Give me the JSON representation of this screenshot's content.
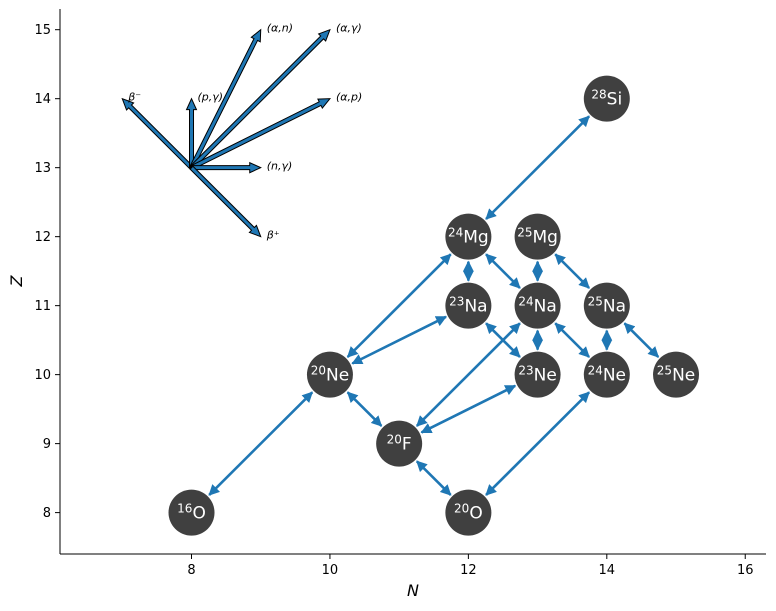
{
  "chart_data": {
    "type": "network",
    "xlabel": "N",
    "ylabel": "Z",
    "xlim": [
      6.1,
      16.3
    ],
    "ylim": [
      7.4,
      15.3
    ],
    "xticks": [
      8,
      10,
      12,
      14,
      16
    ],
    "yticks": [
      8,
      9,
      10,
      11,
      12,
      13,
      14,
      15
    ],
    "node_color": "#404040",
    "edge_color": "#1f77b4",
    "nuclei": [
      {
        "id": "O16",
        "mass": "16",
        "symbol": "O",
        "n": 8,
        "z": 8
      },
      {
        "id": "Ne20",
        "mass": "20",
        "symbol": "Ne",
        "n": 10,
        "z": 10
      },
      {
        "id": "F20",
        "mass": "20",
        "symbol": "F",
        "n": 11,
        "z": 9
      },
      {
        "id": "O20",
        "mass": "20",
        "symbol": "O",
        "n": 12,
        "z": 8
      },
      {
        "id": "Na23",
        "mass": "23",
        "symbol": "Na",
        "n": 12,
        "z": 11
      },
      {
        "id": "Mg24",
        "mass": "24",
        "symbol": "Mg",
        "n": 12,
        "z": 12
      },
      {
        "id": "Ne23",
        "mass": "23",
        "symbol": "Ne",
        "n": 13,
        "z": 10
      },
      {
        "id": "Na24",
        "mass": "24",
        "symbol": "Na",
        "n": 13,
        "z": 11
      },
      {
        "id": "Mg25",
        "mass": "25",
        "symbol": "Mg",
        "n": 13,
        "z": 12
      },
      {
        "id": "Ne24",
        "mass": "24",
        "symbol": "Ne",
        "n": 14,
        "z": 10
      },
      {
        "id": "Na25",
        "mass": "25",
        "symbol": "Na",
        "n": 14,
        "z": 11
      },
      {
        "id": "Si28",
        "mass": "28",
        "symbol": "Si",
        "n": 14,
        "z": 14
      },
      {
        "id": "Ne25",
        "mass": "25",
        "symbol": "Ne",
        "n": 15,
        "z": 10
      }
    ],
    "links": [
      [
        "O16",
        "Ne20"
      ],
      [
        "Ne20",
        "Mg24"
      ],
      [
        "Ne20",
        "Na23"
      ],
      [
        "Ne20",
        "F20"
      ],
      [
        "F20",
        "O20"
      ],
      [
        "F20",
        "Na24"
      ],
      [
        "F20",
        "Ne23"
      ],
      [
        "O20",
        "Ne24"
      ],
      [
        "Mg24",
        "Si28"
      ],
      [
        "Mg24",
        "Na23"
      ],
      [
        "Mg24",
        "Na24"
      ],
      [
        "Mg25",
        "Na24"
      ],
      [
        "Mg25",
        "Na25"
      ],
      [
        "Na23",
        "Ne23"
      ],
      [
        "Na24",
        "Ne23"
      ],
      [
        "Na24",
        "Ne24"
      ],
      [
        "Na25",
        "Ne24"
      ],
      [
        "Na25",
        "Ne25"
      ]
    ],
    "legend": {
      "origin": {
        "n": 8,
        "z": 13
      },
      "arrows": [
        {
          "label": "β⁻",
          "dn": -1,
          "dz": 1
        },
        {
          "label": "(p,γ)",
          "dn": 0,
          "dz": 1
        },
        {
          "label": "(α,n)",
          "dn": 1,
          "dz": 2
        },
        {
          "label": "(α,γ)",
          "dn": 2,
          "dz": 2
        },
        {
          "label": "(α,p)",
          "dn": 2,
          "dz": 1
        },
        {
          "label": "(n,γ)",
          "dn": 1,
          "dz": 0
        },
        {
          "label": "β⁺",
          "dn": 1,
          "dz": -1
        }
      ]
    }
  }
}
